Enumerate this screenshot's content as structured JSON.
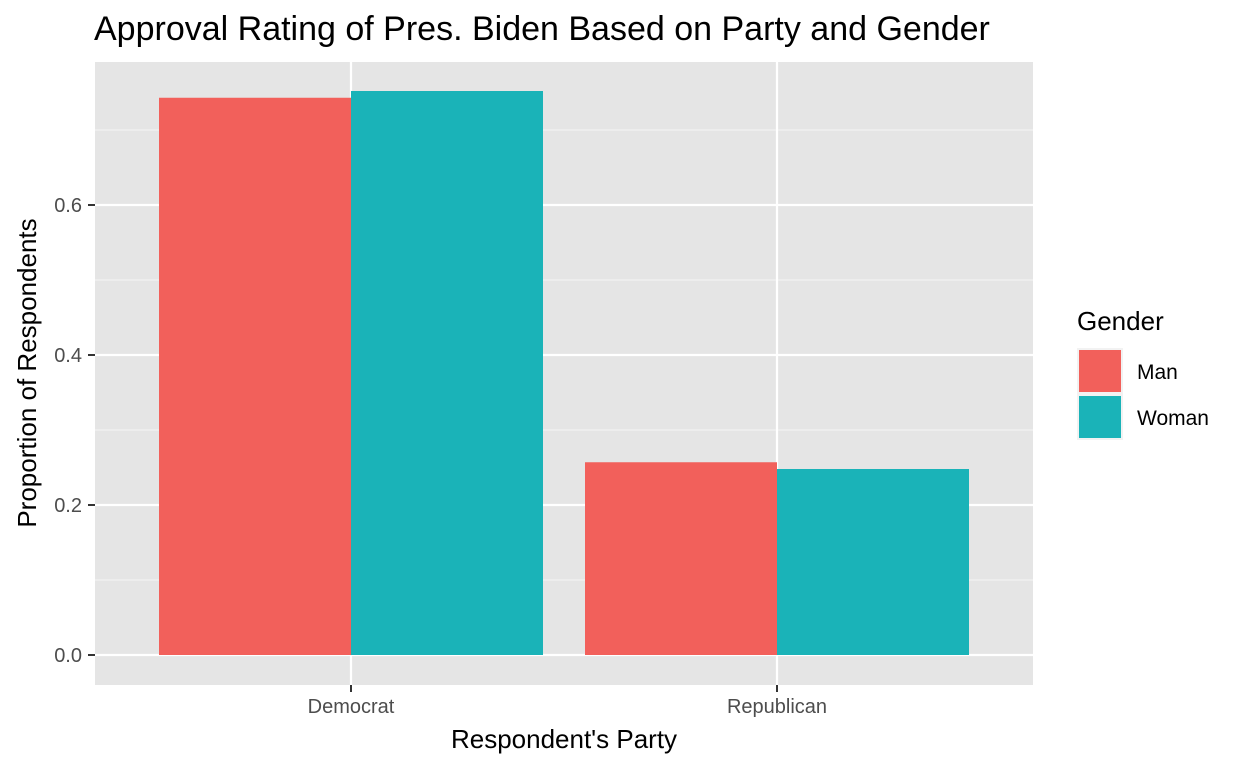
{
  "chart_data": {
    "type": "bar",
    "title": "Approval Rating of Pres. Biden Based on Party and Gender",
    "xlabel": "Respondent's Party",
    "ylabel": "Proportion of Respondents",
    "categories": [
      "Democrat",
      "Republican"
    ],
    "series": [
      {
        "name": "Man",
        "color": "#F8766D",
        "fill": "#F2605B",
        "values": [
          0.743,
          0.257
        ]
      },
      {
        "name": "Woman",
        "color": "#00BFC4",
        "fill": "#1AB3B8",
        "values": [
          0.752,
          0.248
        ]
      }
    ],
    "ylim": [
      0,
      0.75
    ],
    "yticks": [
      0.0,
      0.2,
      0.4,
      0.6
    ],
    "ytick_labels": [
      "0.0",
      "0.2",
      "0.4",
      "0.6"
    ],
    "legend": {
      "title": "Gender",
      "position": "right"
    },
    "grid": true,
    "panel_background": "#E5E5E5",
    "grid_color": "#FFFFFF"
  }
}
